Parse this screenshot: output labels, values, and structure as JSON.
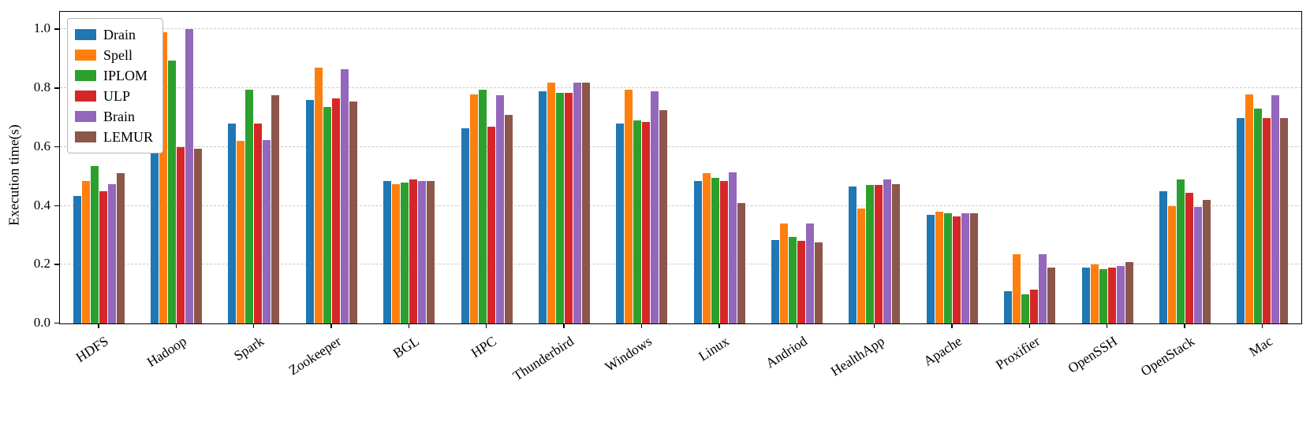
{
  "chart_data": {
    "type": "bar",
    "title": "",
    "xlabel": "",
    "ylabel": "Execution time(s)",
    "ylim": [
      0,
      1.06
    ],
    "yticks": [
      0.0,
      0.2,
      0.4,
      0.6,
      0.8,
      1.0
    ],
    "ytick_labels": [
      "0.0",
      "0.2",
      "0.4",
      "0.6",
      "0.8",
      "1.0"
    ],
    "grid": "horizontal-dashed",
    "legend_position": "upper-left",
    "categories": [
      "HDFS",
      "Hadoop",
      "Spark",
      "Zookeeper",
      "BGL",
      "HPC",
      "Thunderbird",
      "Windows",
      "Linux",
      "Andriod",
      "HealthApp",
      "Apache",
      "Proxifier",
      "OpenSSH",
      "OpenStack",
      "Mac"
    ],
    "series": [
      {
        "name": "Drain",
        "color": "#1f77b4",
        "values": [
          0.435,
          0.595,
          0.68,
          0.76,
          0.485,
          0.665,
          0.79,
          0.68,
          0.485,
          0.285,
          0.465,
          0.37,
          0.11,
          0.19,
          0.45,
          0.7
        ]
      },
      {
        "name": "Spell",
        "color": "#ff7f0e",
        "values": [
          0.485,
          0.99,
          0.62,
          0.87,
          0.475,
          0.78,
          0.82,
          0.795,
          0.51,
          0.34,
          0.39,
          0.38,
          0.235,
          0.2,
          0.4,
          0.78
        ]
      },
      {
        "name": "IPLOM",
        "color": "#2ca02c",
        "values": [
          0.535,
          0.895,
          0.795,
          0.735,
          0.48,
          0.795,
          0.785,
          0.69,
          0.495,
          0.295,
          0.47,
          0.375,
          0.1,
          0.185,
          0.49,
          0.73
        ]
      },
      {
        "name": "ULP",
        "color": "#d62728",
        "values": [
          0.45,
          0.6,
          0.68,
          0.765,
          0.49,
          0.67,
          0.785,
          0.685,
          0.485,
          0.28,
          0.47,
          0.365,
          0.115,
          0.19,
          0.445,
          0.7
        ]
      },
      {
        "name": "Brain",
        "color": "#9467bd",
        "values": [
          0.475,
          1.0,
          0.625,
          0.865,
          0.485,
          0.775,
          0.82,
          0.79,
          0.515,
          0.34,
          0.49,
          0.375,
          0.235,
          0.195,
          0.395,
          0.775
        ]
      },
      {
        "name": "LEMUR",
        "color": "#8c564b",
        "values": [
          0.51,
          0.595,
          0.775,
          0.755,
          0.485,
          0.71,
          0.82,
          0.725,
          0.41,
          0.275,
          0.475,
          0.375,
          0.19,
          0.21,
          0.42,
          0.7
        ]
      }
    ]
  }
}
